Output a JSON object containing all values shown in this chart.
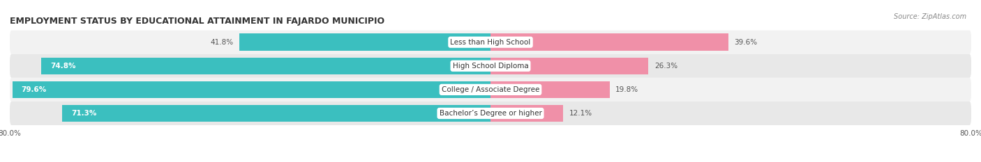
{
  "title": "EMPLOYMENT STATUS BY EDUCATIONAL ATTAINMENT IN FAJARDO MUNICIPIO",
  "source_text": "Source: ZipAtlas.com",
  "categories": [
    "Less than High School",
    "High School Diploma",
    "College / Associate Degree",
    "Bachelor’s Degree or higher"
  ],
  "labor_force": [
    41.8,
    74.8,
    79.6,
    71.3
  ],
  "unemployed": [
    39.6,
    26.3,
    19.8,
    12.1
  ],
  "labor_force_color": "#3BBFBF",
  "unemployed_color": "#F090A8",
  "bar_bg_color_even": "#F2F2F2",
  "bar_bg_color_odd": "#E8E8E8",
  "xlim": [
    -80,
    80
  ],
  "xtick_labels_left": "80.0%",
  "xtick_labels_right": "80.0%",
  "bar_height": 0.72,
  "title_fontsize": 9.0,
  "label_fontsize": 7.5,
  "value_fontsize": 7.5,
  "legend_fontsize": 7.5,
  "source_fontsize": 7.0,
  "background_color": "#FFFFFF",
  "text_color": "#555555",
  "title_color": "#333333"
}
